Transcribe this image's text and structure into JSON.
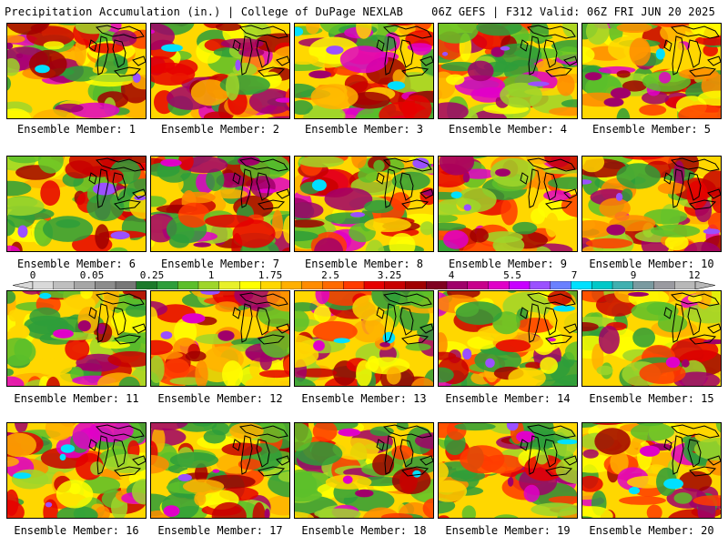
{
  "header": {
    "title": "Precipitation Accumulation (in.) | College of DuPage NEXLAB",
    "run_info": "06Z GEFS | F312 Valid: 06Z FRI JUN 20 2025"
  },
  "colorbar": {
    "labels": [
      "0",
      "0.05",
      "0.25",
      "1",
      "1.75",
      "2.5",
      "3.25",
      "4",
      "5.5",
      "7",
      "9",
      "12"
    ],
    "colors": [
      "#d9d9d9",
      "#bfbfbf",
      "#a6a6a6",
      "#8c8c8c",
      "#777777",
      "#1c7a2a",
      "#2e9e3a",
      "#5cbf2a",
      "#9fd62a",
      "#e8f02a",
      "#ffff00",
      "#ffd700",
      "#ffb000",
      "#ff8c00",
      "#ff6a00",
      "#ff3b00",
      "#e60000",
      "#c80000",
      "#a00000",
      "#800020",
      "#a0006a",
      "#c8008c",
      "#e000c8",
      "#c800ff",
      "#9b50ff",
      "#6a80ff",
      "#00e0ff",
      "#00c8c8",
      "#40b0b0",
      "#7a9aa0",
      "#9a9aa0",
      "#b8b8b8"
    ]
  },
  "panels": [
    {
      "caption": "Ensemble Member: 1"
    },
    {
      "caption": "Ensemble Member: 2"
    },
    {
      "caption": "Ensemble Member: 3"
    },
    {
      "caption": "Ensemble Member: 4"
    },
    {
      "caption": "Ensemble Member: 5"
    },
    {
      "caption": "Ensemble Member: 6"
    },
    {
      "caption": "Ensemble Member: 7"
    },
    {
      "caption": "Ensemble Member: 8"
    },
    {
      "caption": "Ensemble Member: 9"
    },
    {
      "caption": "Ensemble Member: 10"
    },
    {
      "caption": "Ensemble Member: 11"
    },
    {
      "caption": "Ensemble Member: 12"
    },
    {
      "caption": "Ensemble Member: 13"
    },
    {
      "caption": "Ensemble Member: 14"
    },
    {
      "caption": "Ensemble Member: 15"
    },
    {
      "caption": "Ensemble Member: 16"
    },
    {
      "caption": "Ensemble Member: 17"
    },
    {
      "caption": "Ensemble Member: 18"
    },
    {
      "caption": "Ensemble Member: 19"
    },
    {
      "caption": "Ensemble Member: 20"
    }
  ]
}
